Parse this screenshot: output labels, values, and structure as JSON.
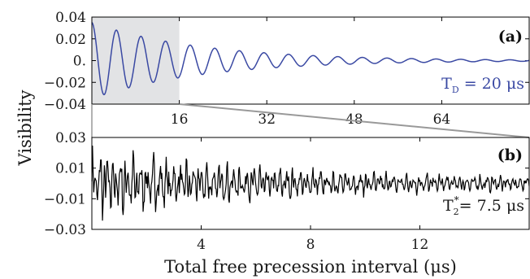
{
  "chart_data": [
    {
      "panel_label": "(a)",
      "type": "line",
      "xlim": [
        0,
        80
      ],
      "ylim": [
        -0.04,
        0.04
      ],
      "xticks": [
        "16",
        "32",
        "48",
        "64"
      ],
      "xtick_values": [
        16,
        32,
        48,
        64
      ],
      "yticks": [
        "0.04",
        "0.02",
        "0.",
        "−0.02",
        "−0.04"
      ],
      "ytick_values": [
        0.04,
        0.02,
        0,
        -0.02,
        -0.04
      ],
      "annotation": {
        "symbol": "T",
        "subscript": "D",
        "text": " =  20 μs"
      },
      "highlight_region": [
        0,
        16
      ],
      "series": [
        {
          "color": "#3a49a3",
          "model": {
            "amplitude": 0.035,
            "decay_time": 20,
            "period": 4.5,
            "x_start": 0,
            "x_end": 80
          }
        }
      ]
    },
    {
      "panel_label": "(b)",
      "type": "line",
      "xlim": [
        0,
        16
      ],
      "ylim": [
        -0.03,
        0.03
      ],
      "xticks": [
        "4",
        "8",
        "12"
      ],
      "xtick_values": [
        4,
        8,
        12
      ],
      "yticks": [
        "0.03",
        "0.01",
        "−0.01",
        "−0.03"
      ],
      "ytick_values": [
        0.03,
        0.01,
        -0.01,
        -0.03
      ],
      "xlabel": "Total free precession interval (μs)",
      "annotation": {
        "symbol": "T",
        "subscript": "2",
        "superscript": "*",
        "text": "= 7.5 μs"
      },
      "series": [
        {
          "color": "#000000",
          "model": {
            "amplitude": 0.02,
            "decay_time": 7.5,
            "x_start": 0,
            "x_end": 16
          }
        }
      ]
    }
  ],
  "shared": {
    "ylabel": "Visibility",
    "zoom_connector_color": "#999999"
  }
}
